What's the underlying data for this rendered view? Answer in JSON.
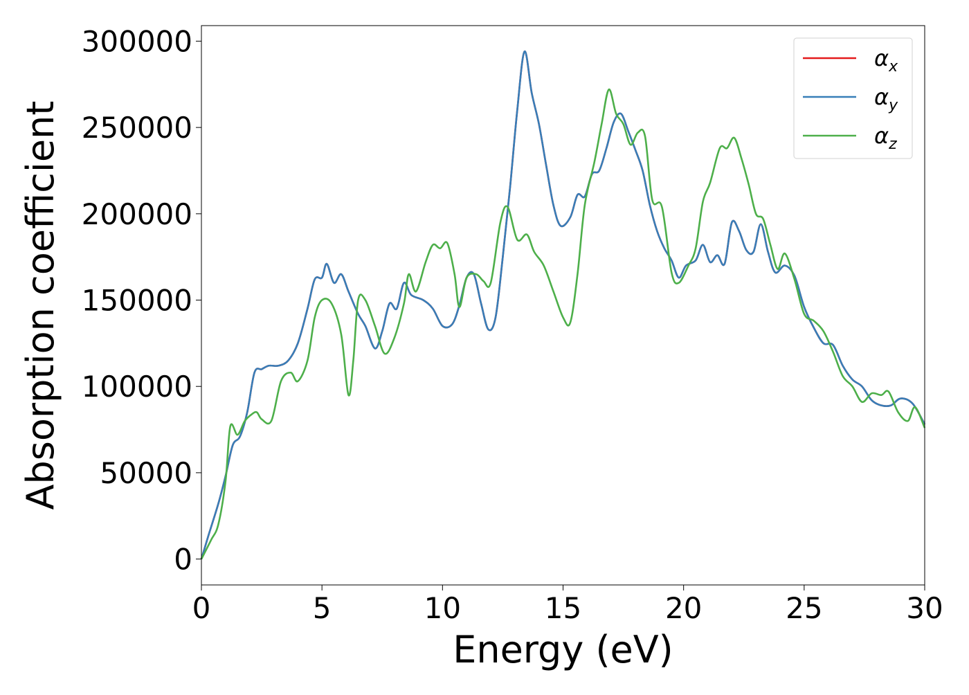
{
  "chart_data": {
    "type": "line",
    "title": "",
    "xlabel": "Energy (eV)",
    "ylabel": "Absorption coefficient",
    "xlim": [
      0,
      30
    ],
    "ylim": [
      -15000,
      309000
    ],
    "xticks": [
      0,
      5,
      10,
      15,
      20,
      25,
      30
    ],
    "yticks": [
      0,
      50000,
      100000,
      150000,
      200000,
      250000,
      300000
    ],
    "xtick_labels": [
      "0",
      "5",
      "10",
      "15",
      "20",
      "25",
      "30"
    ],
    "ytick_labels": [
      "0",
      "50000",
      "100000",
      "150000",
      "200000",
      "250000",
      "300000"
    ],
    "grid": false,
    "legend_position": "top-right",
    "series": [
      {
        "name": "α_x",
        "legend_base": "α",
        "legend_sub": "x",
        "color": "#e41a1c",
        "points": [
          [
            0,
            0
          ],
          [
            0.3,
            14000
          ],
          [
            0.7,
            32000
          ],
          [
            1,
            48000
          ],
          [
            1.3,
            66000
          ],
          [
            1.6,
            71000
          ],
          [
            1.9,
            85000
          ],
          [
            2.2,
            108000
          ],
          [
            2.5,
            110000
          ],
          [
            2.8,
            112000
          ],
          [
            3.2,
            112000
          ],
          [
            3.6,
            115000
          ],
          [
            4,
            125000
          ],
          [
            4.4,
            145000
          ],
          [
            4.7,
            162000
          ],
          [
            5,
            163000
          ],
          [
            5.2,
            171000
          ],
          [
            5.5,
            160000
          ],
          [
            5.8,
            165000
          ],
          [
            6.1,
            155000
          ],
          [
            6.5,
            142000
          ],
          [
            6.8,
            135000
          ],
          [
            7.2,
            122000
          ],
          [
            7.5,
            132000
          ],
          [
            7.8,
            148000
          ],
          [
            8.1,
            145000
          ],
          [
            8.4,
            160000
          ],
          [
            8.7,
            153000
          ],
          [
            9.2,
            150000
          ],
          [
            9.6,
            145000
          ],
          [
            10,
            135000
          ],
          [
            10.4,
            136000
          ],
          [
            10.7,
            147000
          ],
          [
            11,
            163000
          ],
          [
            11.3,
            165000
          ],
          [
            11.6,
            148000
          ],
          [
            11.9,
            133000
          ],
          [
            12.2,
            140000
          ],
          [
            12.5,
            175000
          ],
          [
            12.8,
            215000
          ],
          [
            13.1,
            260000
          ],
          [
            13.4,
            294000
          ],
          [
            13.7,
            270000
          ],
          [
            14,
            252000
          ],
          [
            14.3,
            228000
          ],
          [
            14.6,
            205000
          ],
          [
            14.9,
            193000
          ],
          [
            15.3,
            198000
          ],
          [
            15.6,
            211000
          ],
          [
            15.9,
            210000
          ],
          [
            16.2,
            223000
          ],
          [
            16.5,
            225000
          ],
          [
            16.8,
            238000
          ],
          [
            17.1,
            253000
          ],
          [
            17.4,
            258000
          ],
          [
            17.7,
            248000
          ],
          [
            18,
            237000
          ],
          [
            18.3,
            225000
          ],
          [
            18.6,
            205000
          ],
          [
            18.9,
            190000
          ],
          [
            19.2,
            180000
          ],
          [
            19.5,
            173000
          ],
          [
            19.8,
            163000
          ],
          [
            20.1,
            170000
          ],
          [
            20.5,
            173000
          ],
          [
            20.8,
            182000
          ],
          [
            21.1,
            172000
          ],
          [
            21.4,
            176000
          ],
          [
            21.7,
            171000
          ],
          [
            22,
            195000
          ],
          [
            22.3,
            190000
          ],
          [
            22.6,
            179000
          ],
          [
            22.9,
            178000
          ],
          [
            23.2,
            194000
          ],
          [
            23.5,
            178000
          ],
          [
            23.8,
            166000
          ],
          [
            24.2,
            170000
          ],
          [
            24.6,
            164000
          ],
          [
            25,
            146000
          ],
          [
            25.4,
            134000
          ],
          [
            25.8,
            125000
          ],
          [
            26.2,
            124000
          ],
          [
            26.6,
            112000
          ],
          [
            27,
            104000
          ],
          [
            27.4,
            100000
          ],
          [
            27.8,
            92000
          ],
          [
            28.2,
            89000
          ],
          [
            28.6,
            89000
          ],
          [
            29,
            93000
          ],
          [
            29.5,
            90000
          ],
          [
            30,
            78000
          ]
        ]
      },
      {
        "name": "α_y",
        "legend_base": "α",
        "legend_sub": "y",
        "color": "#377eb8",
        "points": [
          [
            0,
            0
          ],
          [
            0.3,
            14000
          ],
          [
            0.7,
            32000
          ],
          [
            1,
            48000
          ],
          [
            1.3,
            66000
          ],
          [
            1.6,
            71000
          ],
          [
            1.9,
            85000
          ],
          [
            2.2,
            108000
          ],
          [
            2.5,
            110000
          ],
          [
            2.8,
            112000
          ],
          [
            3.2,
            112000
          ],
          [
            3.6,
            115000
          ],
          [
            4,
            125000
          ],
          [
            4.4,
            145000
          ],
          [
            4.7,
            162000
          ],
          [
            5,
            163000
          ],
          [
            5.2,
            171000
          ],
          [
            5.5,
            160000
          ],
          [
            5.8,
            165000
          ],
          [
            6.1,
            155000
          ],
          [
            6.5,
            142000
          ],
          [
            6.8,
            135000
          ],
          [
            7.2,
            122000
          ],
          [
            7.5,
            132000
          ],
          [
            7.8,
            148000
          ],
          [
            8.1,
            145000
          ],
          [
            8.4,
            160000
          ],
          [
            8.7,
            153000
          ],
          [
            9.2,
            150000
          ],
          [
            9.6,
            145000
          ],
          [
            10,
            135000
          ],
          [
            10.4,
            136000
          ],
          [
            10.7,
            147000
          ],
          [
            11,
            163000
          ],
          [
            11.3,
            165000
          ],
          [
            11.6,
            148000
          ],
          [
            11.9,
            133000
          ],
          [
            12.2,
            140000
          ],
          [
            12.5,
            175000
          ],
          [
            12.8,
            215000
          ],
          [
            13.1,
            260000
          ],
          [
            13.4,
            294000
          ],
          [
            13.7,
            270000
          ],
          [
            14,
            252000
          ],
          [
            14.3,
            228000
          ],
          [
            14.6,
            205000
          ],
          [
            14.9,
            193000
          ],
          [
            15.3,
            198000
          ],
          [
            15.6,
            211000
          ],
          [
            15.9,
            210000
          ],
          [
            16.2,
            223000
          ],
          [
            16.5,
            225000
          ],
          [
            16.8,
            238000
          ],
          [
            17.1,
            253000
          ],
          [
            17.4,
            258000
          ],
          [
            17.7,
            248000
          ],
          [
            18,
            237000
          ],
          [
            18.3,
            225000
          ],
          [
            18.6,
            205000
          ],
          [
            18.9,
            190000
          ],
          [
            19.2,
            180000
          ],
          [
            19.5,
            173000
          ],
          [
            19.8,
            163000
          ],
          [
            20.1,
            170000
          ],
          [
            20.5,
            173000
          ],
          [
            20.8,
            182000
          ],
          [
            21.1,
            172000
          ],
          [
            21.4,
            176000
          ],
          [
            21.7,
            171000
          ],
          [
            22,
            195000
          ],
          [
            22.3,
            190000
          ],
          [
            22.6,
            179000
          ],
          [
            22.9,
            178000
          ],
          [
            23.2,
            194000
          ],
          [
            23.5,
            178000
          ],
          [
            23.8,
            166000
          ],
          [
            24.2,
            170000
          ],
          [
            24.6,
            164000
          ],
          [
            25,
            146000
          ],
          [
            25.4,
            134000
          ],
          [
            25.8,
            125000
          ],
          [
            26.2,
            124000
          ],
          [
            26.6,
            112000
          ],
          [
            27,
            104000
          ],
          [
            27.4,
            100000
          ],
          [
            27.8,
            92000
          ],
          [
            28.2,
            89000
          ],
          [
            28.6,
            89000
          ],
          [
            29,
            93000
          ],
          [
            29.5,
            90000
          ],
          [
            30,
            78000
          ]
        ]
      },
      {
        "name": "α_z",
        "legend_base": "α",
        "legend_sub": "z",
        "color": "#4daf4a",
        "points": [
          [
            0,
            0
          ],
          [
            0.4,
            11000
          ],
          [
            0.7,
            20000
          ],
          [
            1,
            45000
          ],
          [
            1.2,
            77000
          ],
          [
            1.5,
            72000
          ],
          [
            1.8,
            80000
          ],
          [
            2.1,
            84000
          ],
          [
            2.3,
            85000
          ],
          [
            2.5,
            81000
          ],
          [
            2.9,
            80000
          ],
          [
            3.3,
            103000
          ],
          [
            3.7,
            108000
          ],
          [
            4,
            103000
          ],
          [
            4.4,
            115000
          ],
          [
            4.7,
            140000
          ],
          [
            5,
            150000
          ],
          [
            5.4,
            148000
          ],
          [
            5.8,
            130000
          ],
          [
            6.1,
            95000
          ],
          [
            6.3,
            115000
          ],
          [
            6.5,
            150000
          ],
          [
            6.8,
            150000
          ],
          [
            7.2,
            135000
          ],
          [
            7.6,
            119000
          ],
          [
            8,
            128000
          ],
          [
            8.4,
            148000
          ],
          [
            8.6,
            165000
          ],
          [
            8.9,
            155000
          ],
          [
            9.3,
            172000
          ],
          [
            9.6,
            182000
          ],
          [
            9.9,
            180000
          ],
          [
            10.2,
            183000
          ],
          [
            10.5,
            165000
          ],
          [
            10.7,
            146000
          ],
          [
            11,
            163000
          ],
          [
            11.4,
            165000
          ],
          [
            11.7,
            161000
          ],
          [
            12,
            160000
          ],
          [
            12.4,
            195000
          ],
          [
            12.7,
            204000
          ],
          [
            13.1,
            185000
          ],
          [
            13.5,
            188000
          ],
          [
            13.8,
            178000
          ],
          [
            14.2,
            170000
          ],
          [
            14.6,
            155000
          ],
          [
            15,
            140000
          ],
          [
            15.3,
            137000
          ],
          [
            15.6,
            165000
          ],
          [
            15.9,
            205000
          ],
          [
            16.3,
            230000
          ],
          [
            16.6,
            252000
          ],
          [
            16.9,
            272000
          ],
          [
            17.2,
            258000
          ],
          [
            17.5,
            252000
          ],
          [
            17.8,
            240000
          ],
          [
            18.1,
            247000
          ],
          [
            18.4,
            245000
          ],
          [
            18.7,
            208000
          ],
          [
            19.1,
            204000
          ],
          [
            19.5,
            166000
          ],
          [
            19.8,
            160000
          ],
          [
            20.2,
            170000
          ],
          [
            20.5,
            180000
          ],
          [
            20.8,
            207000
          ],
          [
            21.1,
            218000
          ],
          [
            21.5,
            238000
          ],
          [
            21.8,
            238000
          ],
          [
            22.1,
            244000
          ],
          [
            22.4,
            232000
          ],
          [
            22.7,
            217000
          ],
          [
            23,
            200000
          ],
          [
            23.3,
            197000
          ],
          [
            23.6,
            182000
          ],
          [
            23.9,
            168000
          ],
          [
            24.2,
            177000
          ],
          [
            24.6,
            162000
          ],
          [
            25,
            142000
          ],
          [
            25.4,
            138000
          ],
          [
            25.8,
            132000
          ],
          [
            26.2,
            120000
          ],
          [
            26.6,
            106000
          ],
          [
            27,
            100000
          ],
          [
            27.4,
            91000
          ],
          [
            27.8,
            96000
          ],
          [
            28.2,
            95000
          ],
          [
            28.5,
            97000
          ],
          [
            28.9,
            85000
          ],
          [
            29.3,
            80000
          ],
          [
            29.6,
            88000
          ],
          [
            30,
            76000
          ]
        ]
      }
    ]
  }
}
